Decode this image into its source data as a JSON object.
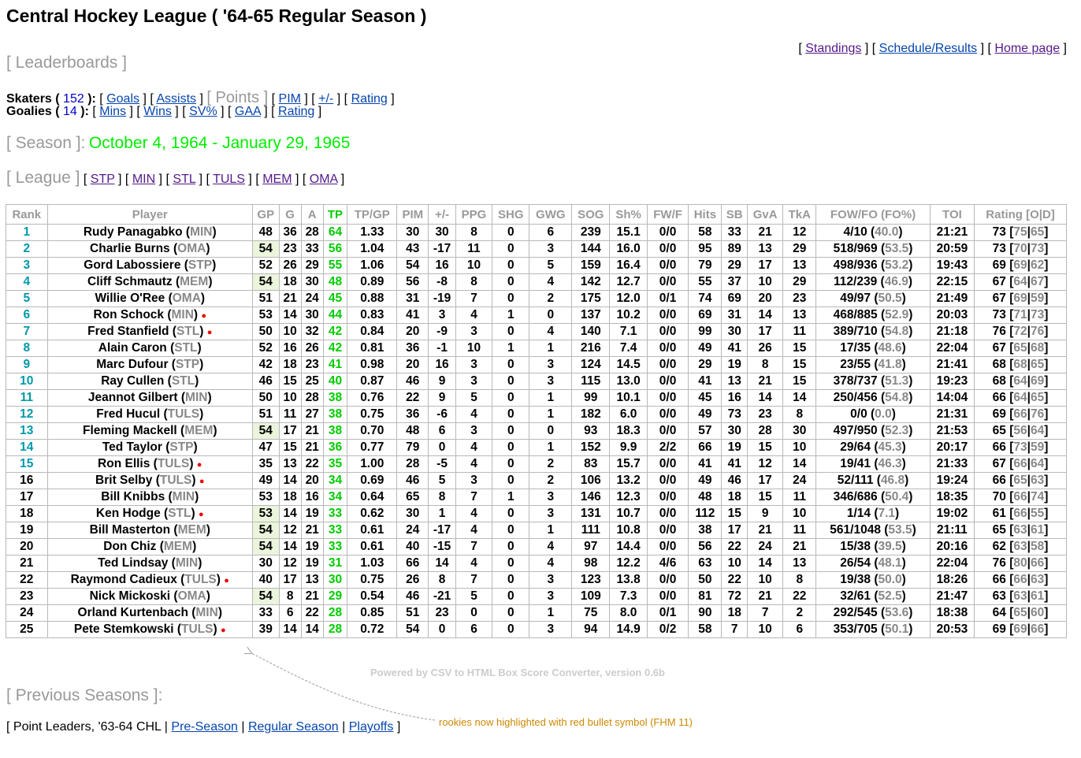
{
  "header": {
    "title": "Central Hockey League ( '64-65 Regular Season )"
  },
  "topnav": {
    "open": "[ ",
    "sep": " ] [ ",
    "close": " ]",
    "standings": "Standings",
    "schedule": "Schedule/Results",
    "home": "Home page"
  },
  "leaderboards": {
    "label": "[ Leaderboards ]"
  },
  "skaters": {
    "label": "Skaters",
    "count": "152",
    "goals": "Goals",
    "assists": "Assists",
    "points": "[ Points ]",
    "pim": "PIM",
    "plusminus": "+/-",
    "rating": "Rating"
  },
  "goalies": {
    "label": "Goalies",
    "count": "14",
    "mins": "Mins",
    "wins": "Wins",
    "svpct": "SV%",
    "gaa": "GAA",
    "rating": "Rating"
  },
  "season": {
    "label": "[ Season ]:",
    "range": "October 4, 1964 - January 29, 1965"
  },
  "league": {
    "label": "[ League ]",
    "teams": [
      "STP",
      "MIN",
      "STL",
      "TULS",
      "MEM",
      "OMA"
    ]
  },
  "table": {
    "headers": [
      "Rank",
      "Player",
      "GP",
      "G",
      "A",
      "TP",
      "TP/GP",
      "PIM",
      "+/-",
      "PPG",
      "SHG",
      "GWG",
      "SOG",
      "Sh%",
      "FW/F",
      "Hits",
      "SB",
      "GvA",
      "TkA",
      "FOW/FO (FO%)",
      "TOI",
      "Rating [O|D]"
    ],
    "rows": [
      {
        "rank": "1",
        "name": "Rudy Panagabko",
        "team": "MIN",
        "rookie": false,
        "gp": "48",
        "gp_hl": false,
        "g": "36",
        "a": "28",
        "tp": "64",
        "tpgp": "1.33",
        "pim": "30",
        "pm": "30",
        "ppg": "8",
        "shg": "0",
        "gwg": "6",
        "sog": "239",
        "shp": "15.1",
        "fwf": "0/0",
        "hits": "58",
        "sb": "33",
        "gva": "21",
        "tka": "12",
        "fo": "4/10",
        "fop": "40.0",
        "toi": "21:21",
        "rating": "73",
        "ro": "75",
        "rd": "65"
      },
      {
        "rank": "2",
        "name": "Charlie Burns",
        "team": "OMA",
        "rookie": false,
        "gp": "54",
        "gp_hl": true,
        "g": "23",
        "a": "33",
        "tp": "56",
        "tpgp": "1.04",
        "pim": "43",
        "pm": "-17",
        "ppg": "11",
        "shg": "0",
        "gwg": "3",
        "sog": "144",
        "shp": "16.0",
        "fwf": "0/0",
        "hits": "95",
        "sb": "89",
        "gva": "13",
        "tka": "29",
        "fo": "518/969",
        "fop": "53.5",
        "toi": "20:59",
        "rating": "73",
        "ro": "70",
        "rd": "73"
      },
      {
        "rank": "3",
        "name": "Gord Labossiere",
        "team": "STP",
        "rookie": false,
        "gp": "52",
        "gp_hl": false,
        "g": "26",
        "a": "29",
        "tp": "55",
        "tpgp": "1.06",
        "pim": "54",
        "pm": "16",
        "ppg": "10",
        "shg": "0",
        "gwg": "5",
        "sog": "159",
        "shp": "16.4",
        "fwf": "0/0",
        "hits": "79",
        "sb": "29",
        "gva": "17",
        "tka": "13",
        "fo": "498/936",
        "fop": "53.2",
        "toi": "19:43",
        "rating": "69",
        "ro": "69",
        "rd": "62"
      },
      {
        "rank": "4",
        "name": "Cliff Schmautz",
        "team": "MEM",
        "rookie": false,
        "gp": "54",
        "gp_hl": true,
        "g": "18",
        "a": "30",
        "tp": "48",
        "tpgp": "0.89",
        "pim": "56",
        "pm": "-8",
        "ppg": "8",
        "shg": "0",
        "gwg": "4",
        "sog": "142",
        "shp": "12.7",
        "fwf": "0/0",
        "hits": "55",
        "sb": "37",
        "gva": "10",
        "tka": "29",
        "fo": "112/239",
        "fop": "46.9",
        "toi": "22:15",
        "rating": "67",
        "ro": "64",
        "rd": "67"
      },
      {
        "rank": "5",
        "name": "Willie O'Ree",
        "team": "OMA",
        "rookie": false,
        "gp": "51",
        "gp_hl": false,
        "g": "21",
        "a": "24",
        "tp": "45",
        "tpgp": "0.88",
        "pim": "31",
        "pm": "-19",
        "ppg": "7",
        "shg": "0",
        "gwg": "2",
        "sog": "175",
        "shp": "12.0",
        "fwf": "0/1",
        "hits": "74",
        "sb": "69",
        "gva": "20",
        "tka": "23",
        "fo": "49/97",
        "fop": "50.5",
        "toi": "21:49",
        "rating": "67",
        "ro": "69",
        "rd": "59"
      },
      {
        "rank": "6",
        "name": "Ron Schock",
        "team": "MIN",
        "rookie": true,
        "gp": "53",
        "gp_hl": false,
        "g": "14",
        "a": "30",
        "tp": "44",
        "tpgp": "0.83",
        "pim": "41",
        "pm": "3",
        "ppg": "4",
        "shg": "1",
        "gwg": "0",
        "sog": "137",
        "shp": "10.2",
        "fwf": "0/0",
        "hits": "69",
        "sb": "31",
        "gva": "14",
        "tka": "13",
        "fo": "468/885",
        "fop": "52.9",
        "toi": "20:03",
        "rating": "73",
        "ro": "71",
        "rd": "73"
      },
      {
        "rank": "7",
        "name": "Fred Stanfield",
        "team": "STL",
        "rookie": true,
        "gp": "50",
        "gp_hl": false,
        "g": "10",
        "a": "32",
        "tp": "42",
        "tpgp": "0.84",
        "pim": "20",
        "pm": "-9",
        "ppg": "3",
        "shg": "0",
        "gwg": "4",
        "sog": "140",
        "shp": "7.1",
        "fwf": "0/0",
        "hits": "99",
        "sb": "30",
        "gva": "17",
        "tka": "11",
        "fo": "389/710",
        "fop": "54.8",
        "toi": "21:18",
        "rating": "76",
        "ro": "72",
        "rd": "76"
      },
      {
        "rank": "8",
        "name": "Alain Caron",
        "team": "STL",
        "rookie": false,
        "gp": "52",
        "gp_hl": false,
        "g": "16",
        "a": "26",
        "tp": "42",
        "tpgp": "0.81",
        "pim": "36",
        "pm": "-1",
        "ppg": "10",
        "shg": "1",
        "gwg": "1",
        "sog": "216",
        "shp": "7.4",
        "fwf": "0/0",
        "hits": "49",
        "sb": "41",
        "gva": "26",
        "tka": "15",
        "fo": "17/35",
        "fop": "48.6",
        "toi": "22:04",
        "rating": "67",
        "ro": "65",
        "rd": "68"
      },
      {
        "rank": "9",
        "name": "Marc Dufour",
        "team": "STP",
        "rookie": false,
        "gp": "42",
        "gp_hl": false,
        "g": "18",
        "a": "23",
        "tp": "41",
        "tpgp": "0.98",
        "pim": "20",
        "pm": "16",
        "ppg": "3",
        "shg": "0",
        "gwg": "3",
        "sog": "124",
        "shp": "14.5",
        "fwf": "0/0",
        "hits": "29",
        "sb": "19",
        "gva": "8",
        "tka": "15",
        "fo": "23/55",
        "fop": "41.8",
        "toi": "21:41",
        "rating": "68",
        "ro": "68",
        "rd": "65"
      },
      {
        "rank": "10",
        "name": "Ray Cullen",
        "team": "STL",
        "rookie": false,
        "gp": "46",
        "gp_hl": false,
        "g": "15",
        "a": "25",
        "tp": "40",
        "tpgp": "0.87",
        "pim": "46",
        "pm": "9",
        "ppg": "3",
        "shg": "0",
        "gwg": "3",
        "sog": "115",
        "shp": "13.0",
        "fwf": "0/0",
        "hits": "41",
        "sb": "13",
        "gva": "21",
        "tka": "15",
        "fo": "378/737",
        "fop": "51.3",
        "toi": "19:23",
        "rating": "68",
        "ro": "64",
        "rd": "69"
      },
      {
        "rank": "11",
        "name": "Jeannot Gilbert",
        "team": "MIN",
        "rookie": false,
        "gp": "50",
        "gp_hl": false,
        "g": "10",
        "a": "28",
        "tp": "38",
        "tpgp": "0.76",
        "pim": "22",
        "pm": "9",
        "ppg": "5",
        "shg": "0",
        "gwg": "1",
        "sog": "99",
        "shp": "10.1",
        "fwf": "0/0",
        "hits": "45",
        "sb": "16",
        "gva": "14",
        "tka": "14",
        "fo": "250/456",
        "fop": "54.8",
        "toi": "14:04",
        "rating": "66",
        "ro": "64",
        "rd": "65"
      },
      {
        "rank": "12",
        "name": "Fred Hucul",
        "team": "TULS",
        "rookie": false,
        "gp": "51",
        "gp_hl": false,
        "g": "11",
        "a": "27",
        "tp": "38",
        "tpgp": "0.75",
        "pim": "36",
        "pm": "-6",
        "ppg": "4",
        "shg": "0",
        "gwg": "1",
        "sog": "182",
        "shp": "6.0",
        "fwf": "0/0",
        "hits": "49",
        "sb": "73",
        "gva": "23",
        "tka": "8",
        "fo": "0/0",
        "fop": "0.0",
        "toi": "21:31",
        "rating": "69",
        "ro": "66",
        "rd": "76"
      },
      {
        "rank": "13",
        "name": "Fleming Mackell",
        "team": "MEM",
        "rookie": false,
        "gp": "54",
        "gp_hl": true,
        "g": "17",
        "a": "21",
        "tp": "38",
        "tpgp": "0.70",
        "pim": "48",
        "pm": "6",
        "ppg": "3",
        "shg": "0",
        "gwg": "0",
        "sog": "93",
        "shp": "18.3",
        "fwf": "0/0",
        "hits": "57",
        "sb": "30",
        "gva": "28",
        "tka": "30",
        "fo": "497/950",
        "fop": "52.3",
        "toi": "21:53",
        "rating": "65",
        "ro": "56",
        "rd": "64"
      },
      {
        "rank": "14",
        "name": "Ted Taylor",
        "team": "STP",
        "rookie": false,
        "gp": "47",
        "gp_hl": false,
        "g": "15",
        "a": "21",
        "tp": "36",
        "tpgp": "0.77",
        "pim": "79",
        "pm": "0",
        "ppg": "4",
        "shg": "0",
        "gwg": "1",
        "sog": "152",
        "shp": "9.9",
        "fwf": "2/2",
        "hits": "66",
        "sb": "19",
        "gva": "15",
        "tka": "10",
        "fo": "29/64",
        "fop": "45.3",
        "toi": "20:17",
        "rating": "66",
        "ro": "73",
        "rd": "59"
      },
      {
        "rank": "15",
        "name": "Ron Ellis",
        "team": "TULS",
        "rookie": true,
        "gp": "35",
        "gp_hl": false,
        "g": "13",
        "a": "22",
        "tp": "35",
        "tpgp": "1.00",
        "pim": "28",
        "pm": "-5",
        "ppg": "4",
        "shg": "0",
        "gwg": "2",
        "sog": "83",
        "shp": "15.7",
        "fwf": "0/0",
        "hits": "41",
        "sb": "41",
        "gva": "12",
        "tka": "14",
        "fo": "19/41",
        "fop": "46.3",
        "toi": "21:33",
        "rating": "67",
        "ro": "66",
        "rd": "64"
      },
      {
        "rank": "16",
        "name": "Brit Selby",
        "team": "TULS",
        "rookie": true,
        "gp": "49",
        "gp_hl": false,
        "g": "14",
        "a": "20",
        "tp": "34",
        "tpgp": "0.69",
        "pim": "46",
        "pm": "5",
        "ppg": "3",
        "shg": "0",
        "gwg": "2",
        "sog": "106",
        "shp": "13.2",
        "fwf": "0/0",
        "hits": "49",
        "sb": "46",
        "gva": "17",
        "tka": "24",
        "fo": "52/111",
        "fop": "46.8",
        "toi": "19:24",
        "rating": "66",
        "ro": "65",
        "rd": "63"
      },
      {
        "rank": "17",
        "name": "Bill Knibbs",
        "team": "MIN",
        "rookie": false,
        "gp": "53",
        "gp_hl": false,
        "g": "18",
        "a": "16",
        "tp": "34",
        "tpgp": "0.64",
        "pim": "65",
        "pm": "8",
        "ppg": "7",
        "shg": "1",
        "gwg": "3",
        "sog": "146",
        "shp": "12.3",
        "fwf": "0/0",
        "hits": "48",
        "sb": "18",
        "gva": "15",
        "tka": "11",
        "fo": "346/686",
        "fop": "50.4",
        "toi": "18:35",
        "rating": "70",
        "ro": "66",
        "rd": "74"
      },
      {
        "rank": "18",
        "name": "Ken Hodge",
        "team": "STL",
        "rookie": true,
        "gp": "53",
        "gp_hl": true,
        "g": "14",
        "a": "19",
        "tp": "33",
        "tpgp": "0.62",
        "pim": "30",
        "pm": "1",
        "ppg": "4",
        "shg": "0",
        "gwg": "3",
        "sog": "131",
        "shp": "10.7",
        "fwf": "0/0",
        "hits": "112",
        "sb": "15",
        "gva": "9",
        "tka": "10",
        "fo": "1/14",
        "fop": "7.1",
        "toi": "19:02",
        "rating": "61",
        "ro": "66",
        "rd": "55"
      },
      {
        "rank": "19",
        "name": "Bill Masterton",
        "team": "MEM",
        "rookie": false,
        "gp": "54",
        "gp_hl": true,
        "g": "12",
        "a": "21",
        "tp": "33",
        "tpgp": "0.61",
        "pim": "24",
        "pm": "-17",
        "ppg": "4",
        "shg": "0",
        "gwg": "1",
        "sog": "111",
        "shp": "10.8",
        "fwf": "0/0",
        "hits": "38",
        "sb": "17",
        "gva": "21",
        "tka": "11",
        "fo": "561/1048",
        "fop": "53.5",
        "toi": "21:11",
        "rating": "65",
        "ro": "63",
        "rd": "61"
      },
      {
        "rank": "20",
        "name": "Don Chiz",
        "team": "MEM",
        "rookie": false,
        "gp": "54",
        "gp_hl": true,
        "g": "14",
        "a": "19",
        "tp": "33",
        "tpgp": "0.61",
        "pim": "40",
        "pm": "-15",
        "ppg": "7",
        "shg": "0",
        "gwg": "4",
        "sog": "97",
        "shp": "14.4",
        "fwf": "0/0",
        "hits": "56",
        "sb": "22",
        "gva": "24",
        "tka": "21",
        "fo": "15/38",
        "fop": "39.5",
        "toi": "20:16",
        "rating": "62",
        "ro": "63",
        "rd": "58"
      },
      {
        "rank": "21",
        "name": "Ted Lindsay",
        "team": "MIN",
        "rookie": false,
        "gp": "30",
        "gp_hl": false,
        "g": "12",
        "a": "19",
        "tp": "31",
        "tpgp": "1.03",
        "pim": "66",
        "pm": "14",
        "ppg": "4",
        "shg": "0",
        "gwg": "4",
        "sog": "98",
        "shp": "12.2",
        "fwf": "4/6",
        "hits": "63",
        "sb": "10",
        "gva": "14",
        "tka": "13",
        "fo": "26/54",
        "fop": "48.1",
        "toi": "22:04",
        "rating": "76",
        "ro": "80",
        "rd": "66"
      },
      {
        "rank": "22",
        "name": "Raymond Cadieux",
        "team": "TULS",
        "rookie": true,
        "gp": "40",
        "gp_hl": false,
        "g": "17",
        "a": "13",
        "tp": "30",
        "tpgp": "0.75",
        "pim": "26",
        "pm": "8",
        "ppg": "7",
        "shg": "0",
        "gwg": "3",
        "sog": "123",
        "shp": "13.8",
        "fwf": "0/0",
        "hits": "50",
        "sb": "22",
        "gva": "10",
        "tka": "8",
        "fo": "19/38",
        "fop": "50.0",
        "toi": "18:26",
        "rating": "66",
        "ro": "66",
        "rd": "63"
      },
      {
        "rank": "23",
        "name": "Nick Mickoski",
        "team": "OMA",
        "rookie": false,
        "gp": "54",
        "gp_hl": true,
        "g": "8",
        "a": "21",
        "tp": "29",
        "tpgp": "0.54",
        "pim": "46",
        "pm": "-21",
        "ppg": "5",
        "shg": "0",
        "gwg": "3",
        "sog": "109",
        "shp": "7.3",
        "fwf": "0/0",
        "hits": "81",
        "sb": "72",
        "gva": "21",
        "tka": "22",
        "fo": "32/61",
        "fop": "52.5",
        "toi": "21:47",
        "rating": "63",
        "ro": "63",
        "rd": "61"
      },
      {
        "rank": "24",
        "name": "Orland Kurtenbach",
        "team": "MIN",
        "rookie": false,
        "gp": "33",
        "gp_hl": false,
        "g": "6",
        "a": "22",
        "tp": "28",
        "tpgp": "0.85",
        "pim": "51",
        "pm": "23",
        "ppg": "0",
        "shg": "0",
        "gwg": "1",
        "sog": "75",
        "shp": "8.0",
        "fwf": "0/1",
        "hits": "90",
        "sb": "18",
        "gva": "7",
        "tka": "2",
        "fo": "292/545",
        "fop": "53.6",
        "toi": "18:38",
        "rating": "64",
        "ro": "65",
        "rd": "60"
      },
      {
        "rank": "25",
        "name": "Pete Stemkowski",
        "team": "TULS",
        "rookie": true,
        "gp": "39",
        "gp_hl": false,
        "g": "14",
        "a": "14",
        "tp": "28",
        "tpgp": "0.72",
        "pim": "54",
        "pm": "0",
        "ppg": "6",
        "shg": "0",
        "gwg": "3",
        "sog": "94",
        "shp": "14.9",
        "fwf": "0/2",
        "hits": "58",
        "sb": "7",
        "gva": "10",
        "tka": "6",
        "fo": "353/705",
        "fop": "50.1",
        "toi": "20:53",
        "rating": "69",
        "ro": "69",
        "rd": "66"
      }
    ]
  },
  "footer": {
    "powered": "Powered by CSV to HTML Box Score Converter, version 0.6b",
    "previous_label": "[ Previous Seasons ]:",
    "point_leaders": "[ Point Leaders, '63-64 CHL |",
    "preseason": "Pre-Season",
    "regular": "Regular Season",
    "playoffs": "Playoffs",
    "close": "]",
    "annotation": "rookies now highlighted with red bullet symbol (FHM 11)"
  },
  "colors": {
    "section_grey": "#999999",
    "season_green": "#00ee00",
    "tp_green": "#00cc00",
    "rank_teal": "#0099aa",
    "rookie_red": "#ee0000",
    "gp_highlight": "#eaf5dc",
    "annotation_orange": "#cc8800"
  }
}
